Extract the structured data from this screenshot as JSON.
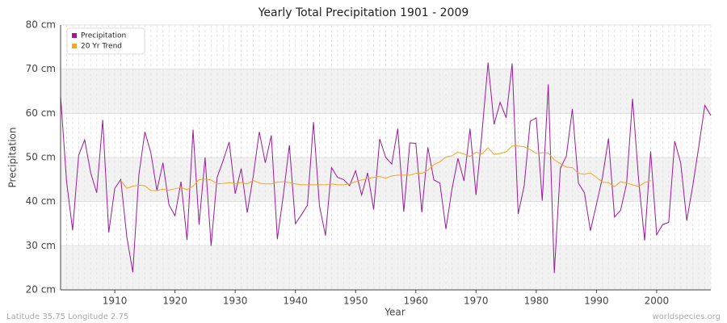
{
  "chart_data": {
    "type": "line",
    "title": "Yearly Total Precipitation 1901 - 2009",
    "x_label": "Year",
    "y_label": "Precipitation",
    "footer_left": "Latitude 35.75 Longitude 2.75",
    "footer_right": "worldspecies.org",
    "x": [
      1901,
      1902,
      1903,
      1904,
      1905,
      1906,
      1907,
      1908,
      1909,
      1910,
      1911,
      1912,
      1913,
      1914,
      1915,
      1916,
      1917,
      1918,
      1919,
      1920,
      1921,
      1922,
      1923,
      1924,
      1925,
      1926,
      1927,
      1928,
      1929,
      1930,
      1931,
      1932,
      1933,
      1934,
      1935,
      1936,
      1937,
      1938,
      1939,
      1940,
      1941,
      1942,
      1943,
      1944,
      1945,
      1946,
      1947,
      1948,
      1949,
      1950,
      1951,
      1952,
      1953,
      1954,
      1955,
      1956,
      1957,
      1958,
      1959,
      1960,
      1961,
      1962,
      1963,
      1964,
      1965,
      1966,
      1967,
      1968,
      1969,
      1970,
      1971,
      1972,
      1973,
      1974,
      1975,
      1976,
      1977,
      1978,
      1979,
      1980,
      1981,
      1982,
      1983,
      1984,
      1985,
      1986,
      1987,
      1988,
      1989,
      1990,
      1991,
      1992,
      1993,
      1994,
      1995,
      1996,
      1997,
      1998,
      1999,
      2000,
      2001,
      2002,
      2003,
      2004,
      2005,
      2006,
      2007,
      2008,
      2009
    ],
    "series": [
      {
        "name": "Precipitation",
        "color": "#9b1a9b",
        "values": [
          64,
          44.5,
          33.5,
          50.5,
          54,
          46.5,
          42,
          58.5,
          33,
          43,
          45,
          32,
          24,
          46,
          55.8,
          51,
          42.5,
          48.8,
          39.3,
          36.8,
          44.5,
          31.3,
          56.3,
          34.8,
          50,
          30,
          45.5,
          49.3,
          53.5,
          41.8,
          47.5,
          37.5,
          45.8,
          55.8,
          48.8,
          55,
          31.5,
          41.5,
          52.8,
          35,
          37,
          39.2,
          58,
          39,
          32.3,
          47.7,
          45.5,
          45,
          43.6,
          47,
          41.5,
          46.5,
          38.2,
          54.2,
          50,
          48.5,
          56.5,
          37.7,
          53.3,
          53.2,
          37.6,
          52.3,
          44.9,
          44.2,
          33.8,
          42.8,
          49.8,
          44.7,
          56.5,
          41.5,
          55.7,
          71.5,
          57.5,
          62.5,
          59,
          71.3,
          37.2,
          43.6,
          58.2,
          59,
          40.2,
          66.6,
          23.8,
          47.5,
          50.3,
          61,
          44.2,
          42,
          33.4,
          39.4,
          45.5,
          54.3,
          36.5,
          38,
          44,
          63.3,
          45,
          31.2,
          51.4,
          32.5,
          34.8,
          35.3,
          53.7,
          48.7,
          35.7,
          43.6,
          52.5,
          61.8,
          59.5
        ]
      },
      {
        "name": "20 Yr Trend",
        "color": "#f5a623",
        "values": [
          null,
          null,
          null,
          null,
          null,
          null,
          null,
          null,
          null,
          null,
          44.8,
          43,
          43.5,
          43.7,
          43.6,
          42.5,
          42.5,
          42.8,
          42.6,
          42.9,
          43.2,
          42.7,
          43.5,
          45,
          45.1,
          44.9,
          44,
          44.1,
          44.3,
          44.1,
          44.3,
          44,
          44.8,
          44.2,
          44,
          44,
          44.4,
          44.5,
          44.3,
          44,
          43.8,
          43.8,
          43.8,
          43.8,
          43.8,
          44,
          43.8,
          43.8,
          44,
          44.5,
          44.9,
          45.2,
          45.5,
          45.7,
          45.3,
          45.8,
          46,
          46,
          46,
          46.4,
          46.4,
          47.1,
          48.4,
          49,
          50.1,
          50.4,
          51.2,
          50.8,
          50.2,
          51.2,
          50.8,
          52.2,
          50.7,
          50.9,
          51.3,
          52.6,
          52.6,
          52.4,
          51.8,
          50.9,
          51.1,
          51,
          49.5,
          48.6,
          47.8,
          47.7,
          46.4,
          46.2,
          46.5,
          45.5,
          44.4,
          44.3,
          43.4,
          44.5,
          44.2,
          43.8,
          43.4,
          44.3,
          44.8,
          null,
          null,
          null,
          null,
          null,
          null,
          null,
          null,
          null,
          null
        ]
      }
    ],
    "xlim": [
      1901,
      2009
    ],
    "xticks": [
      1910,
      1920,
      1930,
      1940,
      1950,
      1960,
      1970,
      1980,
      1990,
      2000
    ],
    "ylim": [
      20,
      80
    ],
    "yticks": [
      {
        "value": 20,
        "label": "20 cm"
      },
      {
        "value": 30,
        "label": "30 cm"
      },
      {
        "value": 40,
        "label": "40 cm"
      },
      {
        "value": 50,
        "label": "50 cm"
      },
      {
        "value": 60,
        "label": "60 cm"
      },
      {
        "value": 70,
        "label": "70 cm"
      },
      {
        "value": 80,
        "label": "80 cm"
      }
    ],
    "grid": true,
    "legend": "top-left"
  }
}
